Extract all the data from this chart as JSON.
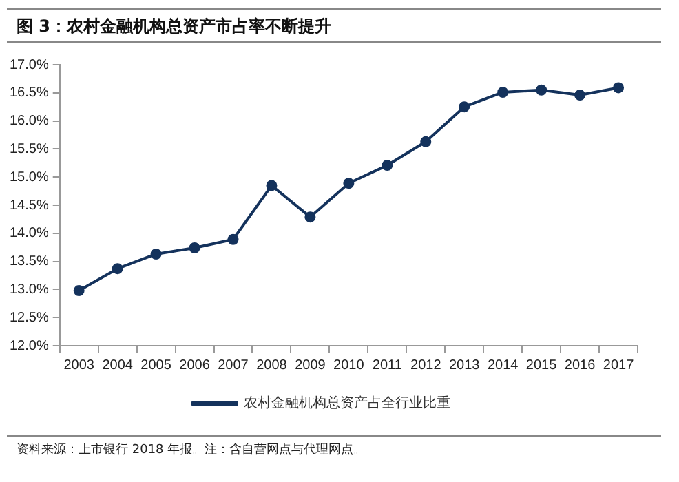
{
  "chart_data": {
    "type": "line",
    "title": "图 3：农村金融机构总资产市占率不断提升",
    "categories": [
      "2003",
      "2004",
      "2005",
      "2006",
      "2007",
      "2008",
      "2009",
      "2010",
      "2011",
      "2012",
      "2013",
      "2014",
      "2015",
      "2016",
      "2017"
    ],
    "series": [
      {
        "name": "农村金融机构总资产占全行业比重",
        "color": "#14325c",
        "values": [
          12.98,
          13.37,
          13.63,
          13.74,
          13.89,
          14.85,
          14.29,
          14.89,
          15.21,
          15.63,
          16.25,
          16.51,
          16.55,
          16.46,
          16.59
        ]
      }
    ],
    "ylim": [
      12,
      17
    ],
    "yticks": [
      {
        "value": 12,
        "label": "12.0%"
      },
      {
        "value": 12.5,
        "label": "12.5%"
      },
      {
        "value": 13,
        "label": "13.0%"
      },
      {
        "value": 13.5,
        "label": "13.5%"
      },
      {
        "value": 14,
        "label": "14.0%"
      },
      {
        "value": 14.5,
        "label": "14.5%"
      },
      {
        "value": 15,
        "label": "15.0%"
      },
      {
        "value": 15.5,
        "label": "15.5%"
      },
      {
        "value": 16,
        "label": "16.0%"
      },
      {
        "value": 16.5,
        "label": "16.5%"
      },
      {
        "value": 17,
        "label": "17.0%"
      }
    ],
    "grid": false,
    "legend": "bottom",
    "marker": "circle",
    "line_style": "solid",
    "annotations": [
      "资料来源：上市银行 2018 年报。注：含自营网点与代理网点。"
    ]
  }
}
